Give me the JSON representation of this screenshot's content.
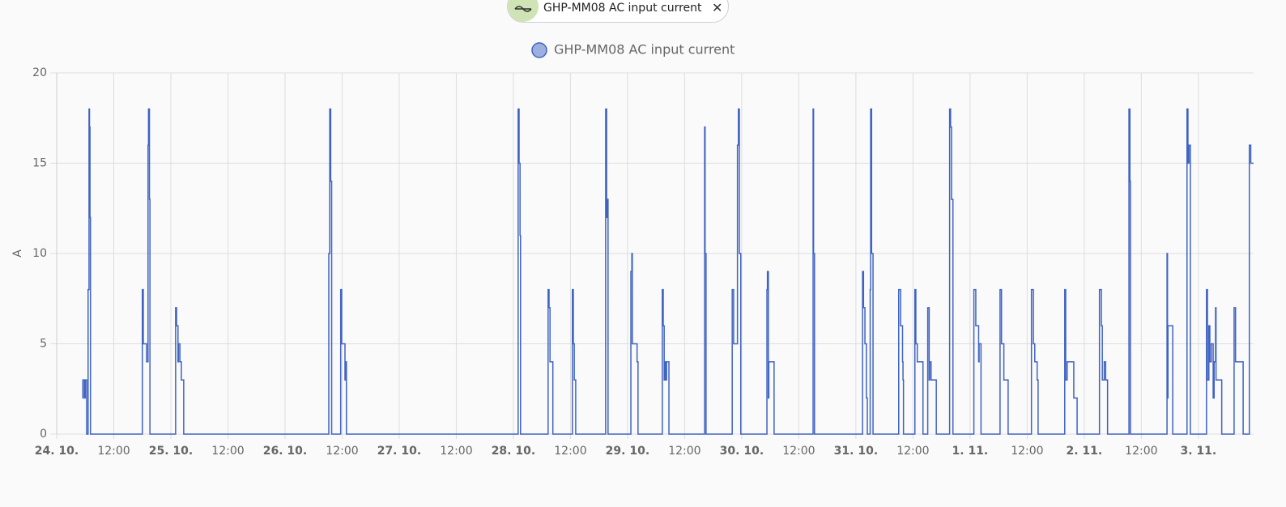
{
  "filter_chip": "GHP-MM08 AC input current",
  "chart_data": {
    "type": "line",
    "step": true,
    "y_label": "A",
    "xlim": [
      0,
      251.6
    ],
    "ylim": [
      0,
      20
    ],
    "yticks": [
      0,
      5,
      10,
      15,
      20
    ],
    "xticks": [
      {
        "value": 0,
        "label": "24. 10."
      },
      {
        "value": 12,
        "label": "12:00"
      },
      {
        "value": 24,
        "label": "25. 10."
      },
      {
        "value": 36,
        "label": "12:00"
      },
      {
        "value": 48,
        "label": "26. 10."
      },
      {
        "value": 60,
        "label": "12:00"
      },
      {
        "value": 72,
        "label": "27. 10."
      },
      {
        "value": 84,
        "label": "12:00"
      },
      {
        "value": 96,
        "label": "28. 10."
      },
      {
        "value": 108,
        "label": "12:00"
      },
      {
        "value": 120,
        "label": "29. 10."
      },
      {
        "value": 132,
        "label": "12:00"
      },
      {
        "value": 144,
        "label": "30. 10."
      },
      {
        "value": 156,
        "label": "12:00"
      },
      {
        "value": 168,
        "label": "31. 10."
      },
      {
        "value": 180,
        "label": "12:00"
      },
      {
        "value": 192,
        "label": "1. 11."
      },
      {
        "value": 204,
        "label": "12:00"
      },
      {
        "value": 216,
        "label": "2. 11."
      },
      {
        "value": 228,
        "label": "12:00"
      },
      {
        "value": 240,
        "label": "3. 11."
      }
    ],
    "grid": true,
    "series": [
      {
        "name": "GHP-MM08 AC input current",
        "color": "#3f63c2",
        "x": [
          5.4,
          5.5,
          5.8,
          6.0,
          6.3,
          6.6,
          6.8,
          6.9,
          7.0,
          7.1,
          18.0,
          18.2,
          18.9,
          19.2,
          19.3,
          19.5,
          19.6,
          25.0,
          25.2,
          25.5,
          25.6,
          25.9,
          26.2,
          26.7,
          57.2,
          57.4,
          57.6,
          57.8,
          59.7,
          59.9,
          60.6,
          60.8,
          60.9,
          97.0,
          97.2,
          97.4,
          97.5,
          103.3,
          103.5,
          103.7,
          104.3,
          108.4,
          108.6,
          108.8,
          109.1,
          115.4,
          115.6,
          115.7,
          115.9,
          120.7,
          120.9,
          121.0,
          122.0,
          122.2,
          127.3,
          127.5,
          127.7,
          127.8,
          128.0,
          128.2,
          128.7,
          136.2,
          136.3,
          136.5,
          142.0,
          142.3,
          143.1,
          143.3,
          143.5,
          143.8,
          149.3,
          149.4,
          149.6,
          149.7,
          150.8,
          159.0,
          159.1,
          159.3,
          169.4,
          169.6,
          169.9,
          170.2,
          170.4,
          171.0,
          171.1,
          171.3,
          171.6,
          177.0,
          177.4,
          177.8,
          177.9,
          178.0,
          180.4,
          180.6,
          180.9,
          182.1,
          183.1,
          183.4,
          183.5,
          183.8,
          184.9,
          187.7,
          187.9,
          188.1,
          188.4,
          192.8,
          193.2,
          193.8,
          193.9,
          194.3,
          198.3,
          198.6,
          199.1,
          200.0,
          204.9,
          205.3,
          205.6,
          206.1,
          206.3,
          211.9,
          212.1,
          212.4,
          213.8,
          214.5,
          219.2,
          219.6,
          219.8,
          220.2,
          220.5,
          220.9,
          225.4,
          225.6,
          225.7,
          233.4,
          233.5,
          233.6,
          234.6,
          237.6,
          237.8,
          238.0,
          238.3,
          241.7,
          241.9,
          242.2,
          242.4,
          242.7,
          243.1,
          243.3,
          243.6,
          243.7,
          244.9,
          247.5,
          247.8,
          249.4,
          250.7,
          251.0,
          251.6
        ],
        "values": [
          2,
          3,
          2,
          3,
          0,
          8,
          18,
          17,
          12,
          0,
          8,
          5,
          4,
          16,
          18,
          13,
          0,
          7,
          6,
          4,
          5,
          4,
          3,
          0,
          10,
          18,
          14,
          0,
          8,
          5,
          3,
          4,
          0,
          18,
          15,
          11,
          0,
          8,
          7,
          4,
          0,
          8,
          5,
          3,
          0,
          18,
          12,
          13,
          0,
          9,
          10,
          5,
          4,
          0,
          8,
          6,
          3,
          4,
          3,
          4,
          0,
          17,
          10,
          0,
          8,
          5,
          16,
          18,
          10,
          0,
          8,
          9,
          2,
          4,
          0,
          18,
          10,
          0,
          9,
          7,
          5,
          2,
          0,
          8,
          18,
          10,
          0,
          8,
          6,
          4,
          3,
          0,
          8,
          5,
          4,
          0,
          7,
          3,
          4,
          3,
          0,
          18,
          17,
          13,
          0,
          8,
          6,
          4,
          5,
          0,
          8,
          5,
          3,
          0,
          8,
          5,
          4,
          3,
          0,
          8,
          3,
          4,
          2,
          0,
          8,
          6,
          3,
          4,
          3,
          0,
          18,
          14,
          0,
          10,
          2,
          6,
          0,
          18,
          15,
          16,
          0,
          8,
          3,
          6,
          4,
          5,
          2,
          4,
          7,
          3,
          0,
          7,
          4,
          0,
          16,
          15,
          15
        ]
      }
    ]
  }
}
